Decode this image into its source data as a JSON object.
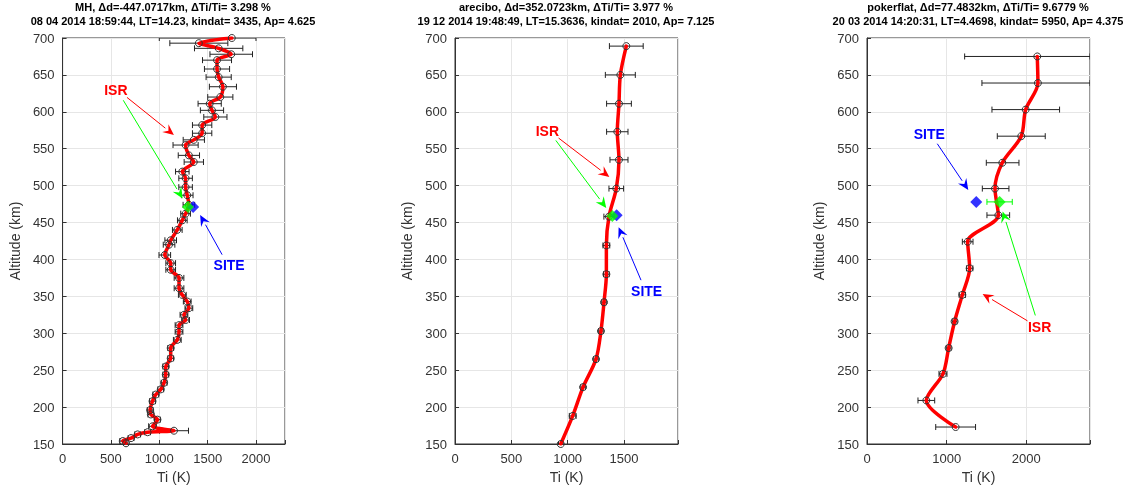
{
  "chart_data": [
    {
      "type": "line",
      "title": "MH, Δd=-447.0717km, ΔTi/Ti= 3.298 %",
      "subtitle": "08 04 2014 18:59:44, LT=14.23, kindat= 3435, Ap= 4.625",
      "xlabel": "Ti (K)",
      "ylabel": "Altitude (km)",
      "xlim": [
        0,
        2300
      ],
      "xticks": [
        0,
        500,
        1000,
        1500,
        2000
      ],
      "ylim": [
        150,
        700
      ],
      "yticks": [
        150,
        200,
        250,
        300,
        350,
        400,
        450,
        500,
        550,
        600,
        650,
        700
      ],
      "grid": true,
      "line_style": "solid",
      "series": [
        {
          "color": "#ff0000",
          "marker": "circle",
          "x": [
            1750,
            1409,
            1614,
            1744,
            1597,
            1597,
            1614,
            1658,
            1631,
            1521,
            1545,
            1580,
            1443,
            1443,
            1357,
            1272,
            1306,
            1357,
            1238,
            1272,
            1272,
            1289,
            1306,
            1272,
            1238,
            1186,
            1118,
            1101,
            1057,
            1118,
            1118,
            1204,
            1204,
            1238,
            1289,
            1306,
            1255,
            1272,
            1204,
            1204,
            1186,
            1118,
            1118,
            1067,
            1067,
            1050,
            1015,
            964,
            930,
            906,
            913,
            981,
            930,
            1152,
            879,
            776,
            708,
            622,
            656
          ],
          "values": [
            700,
            693,
            686,
            678,
            670,
            658,
            647,
            634,
            620,
            611,
            602,
            593,
            582,
            571,
            562,
            555,
            541,
            532,
            519,
            510,
            498,
            487,
            474,
            462,
            453,
            440,
            426,
            420,
            406,
            395,
            386,
            375,
            361,
            352,
            343,
            334,
            325,
            318,
            311,
            302,
            291,
            280,
            266,
            255,
            244,
            233,
            224,
            217,
            208,
            196,
            190,
            183,
            174,
            168,
            166,
            163,
            158,
            154,
            151
          ],
          "xerrors": [
            [
              1000,
              2000
            ],
            300,
            250,
            220,
            150,
            130,
            130,
            140,
            130,
            120,
            120,
            120,
            100,
            100,
            110,
            130,
            110,
            100,
            70,
            70,
            70,
            60,
            60,
            50,
            50,
            50,
            60,
            60,
            60,
            50,
            50,
            50,
            50,
            40,
            40,
            40,
            40,
            40,
            40,
            40,
            40,
            30,
            30,
            30,
            30,
            30,
            30,
            30,
            30,
            30,
            30,
            30,
            40,
            150,
            30,
            30,
            30,
            30,
            20
          ]
        },
        {
          "type": "scatter",
          "color": "#0000ff",
          "marker": "diamond",
          "x": [
            1350
          ],
          "values": [
            471
          ]
        },
        {
          "type": "scatter",
          "color": "#00ff00",
          "marker": "diamond",
          "x": [
            1296
          ],
          "values": [
            471
          ]
        }
      ],
      "annotations": [
        "ISR",
        "SITE"
      ]
    },
    {
      "type": "line",
      "title": "arecibo, Δd=352.0723km, ΔTi/Ti= 3.977 %",
      "subtitle": "19 12 2014 19:48:49, LT=15.3636, kindat= 2010, Ap= 7.125",
      "xlabel": "Ti (K)",
      "ylabel": "Altitude (km)",
      "xlim": [
        0,
        1980
      ],
      "xticks": [
        0,
        500,
        1000,
        1500
      ],
      "ylim": [
        150,
        700
      ],
      "yticks": [
        150,
        200,
        250,
        300,
        350,
        400,
        450,
        500,
        550,
        600,
        650,
        700
      ],
      "grid": true,
      "line_style": "solid",
      "series": [
        {
          "color": "#ff0000",
          "marker": "circle",
          "x": [
            1521,
            1468,
            1456,
            1441,
            1456,
            1432,
            1367,
            1344,
            1344,
            1323,
            1296,
            1252,
            1137,
            1045,
            939
          ],
          "values": [
            689,
            650,
            611,
            573,
            535,
            496,
            458,
            419,
            380,
            342,
            303,
            265,
            227,
            188,
            150
          ],
          "xerrors": [
            150,
            133,
            110,
            95,
            80,
            65,
            45,
            30,
            25,
            20,
            20,
            20,
            20,
            30,
            20
          ]
        },
        {
          "type": "scatter",
          "color": "#0000ff",
          "marker": "diamond",
          "x": [
            1435
          ],
          "values": [
            460
          ]
        },
        {
          "type": "scatter",
          "color": "#00ff00",
          "marker": "diamond",
          "x": [
            1397
          ],
          "values": [
            459
          ]
        }
      ],
      "annotations": [
        "ISR",
        "SITE"
      ]
    },
    {
      "type": "line",
      "title": "pokerflat, Δd=77.4832km, ΔTi/Ti= 9.6779 %",
      "subtitle": "20 03 2014 14:20:31, LT=4.4698, kindat= 5950, Ap= 4.375",
      "xlabel": "Ti (K)",
      "ylabel": "Altitude (km)",
      "xlim": [
        0,
        2800
      ],
      "xticks": [
        0,
        1000,
        2000
      ],
      "ylim": [
        150,
        700
      ],
      "yticks": [
        150,
        200,
        250,
        300,
        350,
        400,
        450,
        500,
        550,
        600,
        650,
        700
      ],
      "grid": true,
      "line_style": "solid",
      "series": [
        {
          "color": "#ff0000",
          "marker": "circle",
          "x": [
            2138,
            2146,
            1992,
            1937,
            1699,
            1607,
            1649,
            1264,
            1289,
            1197,
            1100,
            1025,
            954,
            745,
            1113
          ],
          "values": [
            675,
            639,
            603,
            567,
            531,
            496,
            460,
            424,
            388,
            352,
            316,
            280,
            245,
            209,
            173
          ],
          "xerrors": [
            [
              1226,
              2800
            ],
            [
              1443,
              2800
            ],
            [
              1569,
              2418
            ],
            [
              1636,
              2238
            ],
            [
              1498,
              1908
            ],
            [
              1448,
              1782
            ],
            [
              1506,
              1791
            ],
            67,
            40,
            40,
            30,
            30,
            50,
            105,
            250
          ]
        },
        {
          "type": "scatter",
          "color": "#0000ff",
          "marker": "diamond",
          "x": [
            1372
          ],
          "values": [
            478
          ]
        },
        {
          "type": "scatter",
          "color": "#00ff00",
          "marker": "diamond",
          "x": [
            1665
          ],
          "values": [
            478
          ],
          "xerrors": [
            [
              1506,
              1824
            ]
          ]
        }
      ],
      "annotations": [
        "ISR",
        "SITE"
      ]
    }
  ]
}
